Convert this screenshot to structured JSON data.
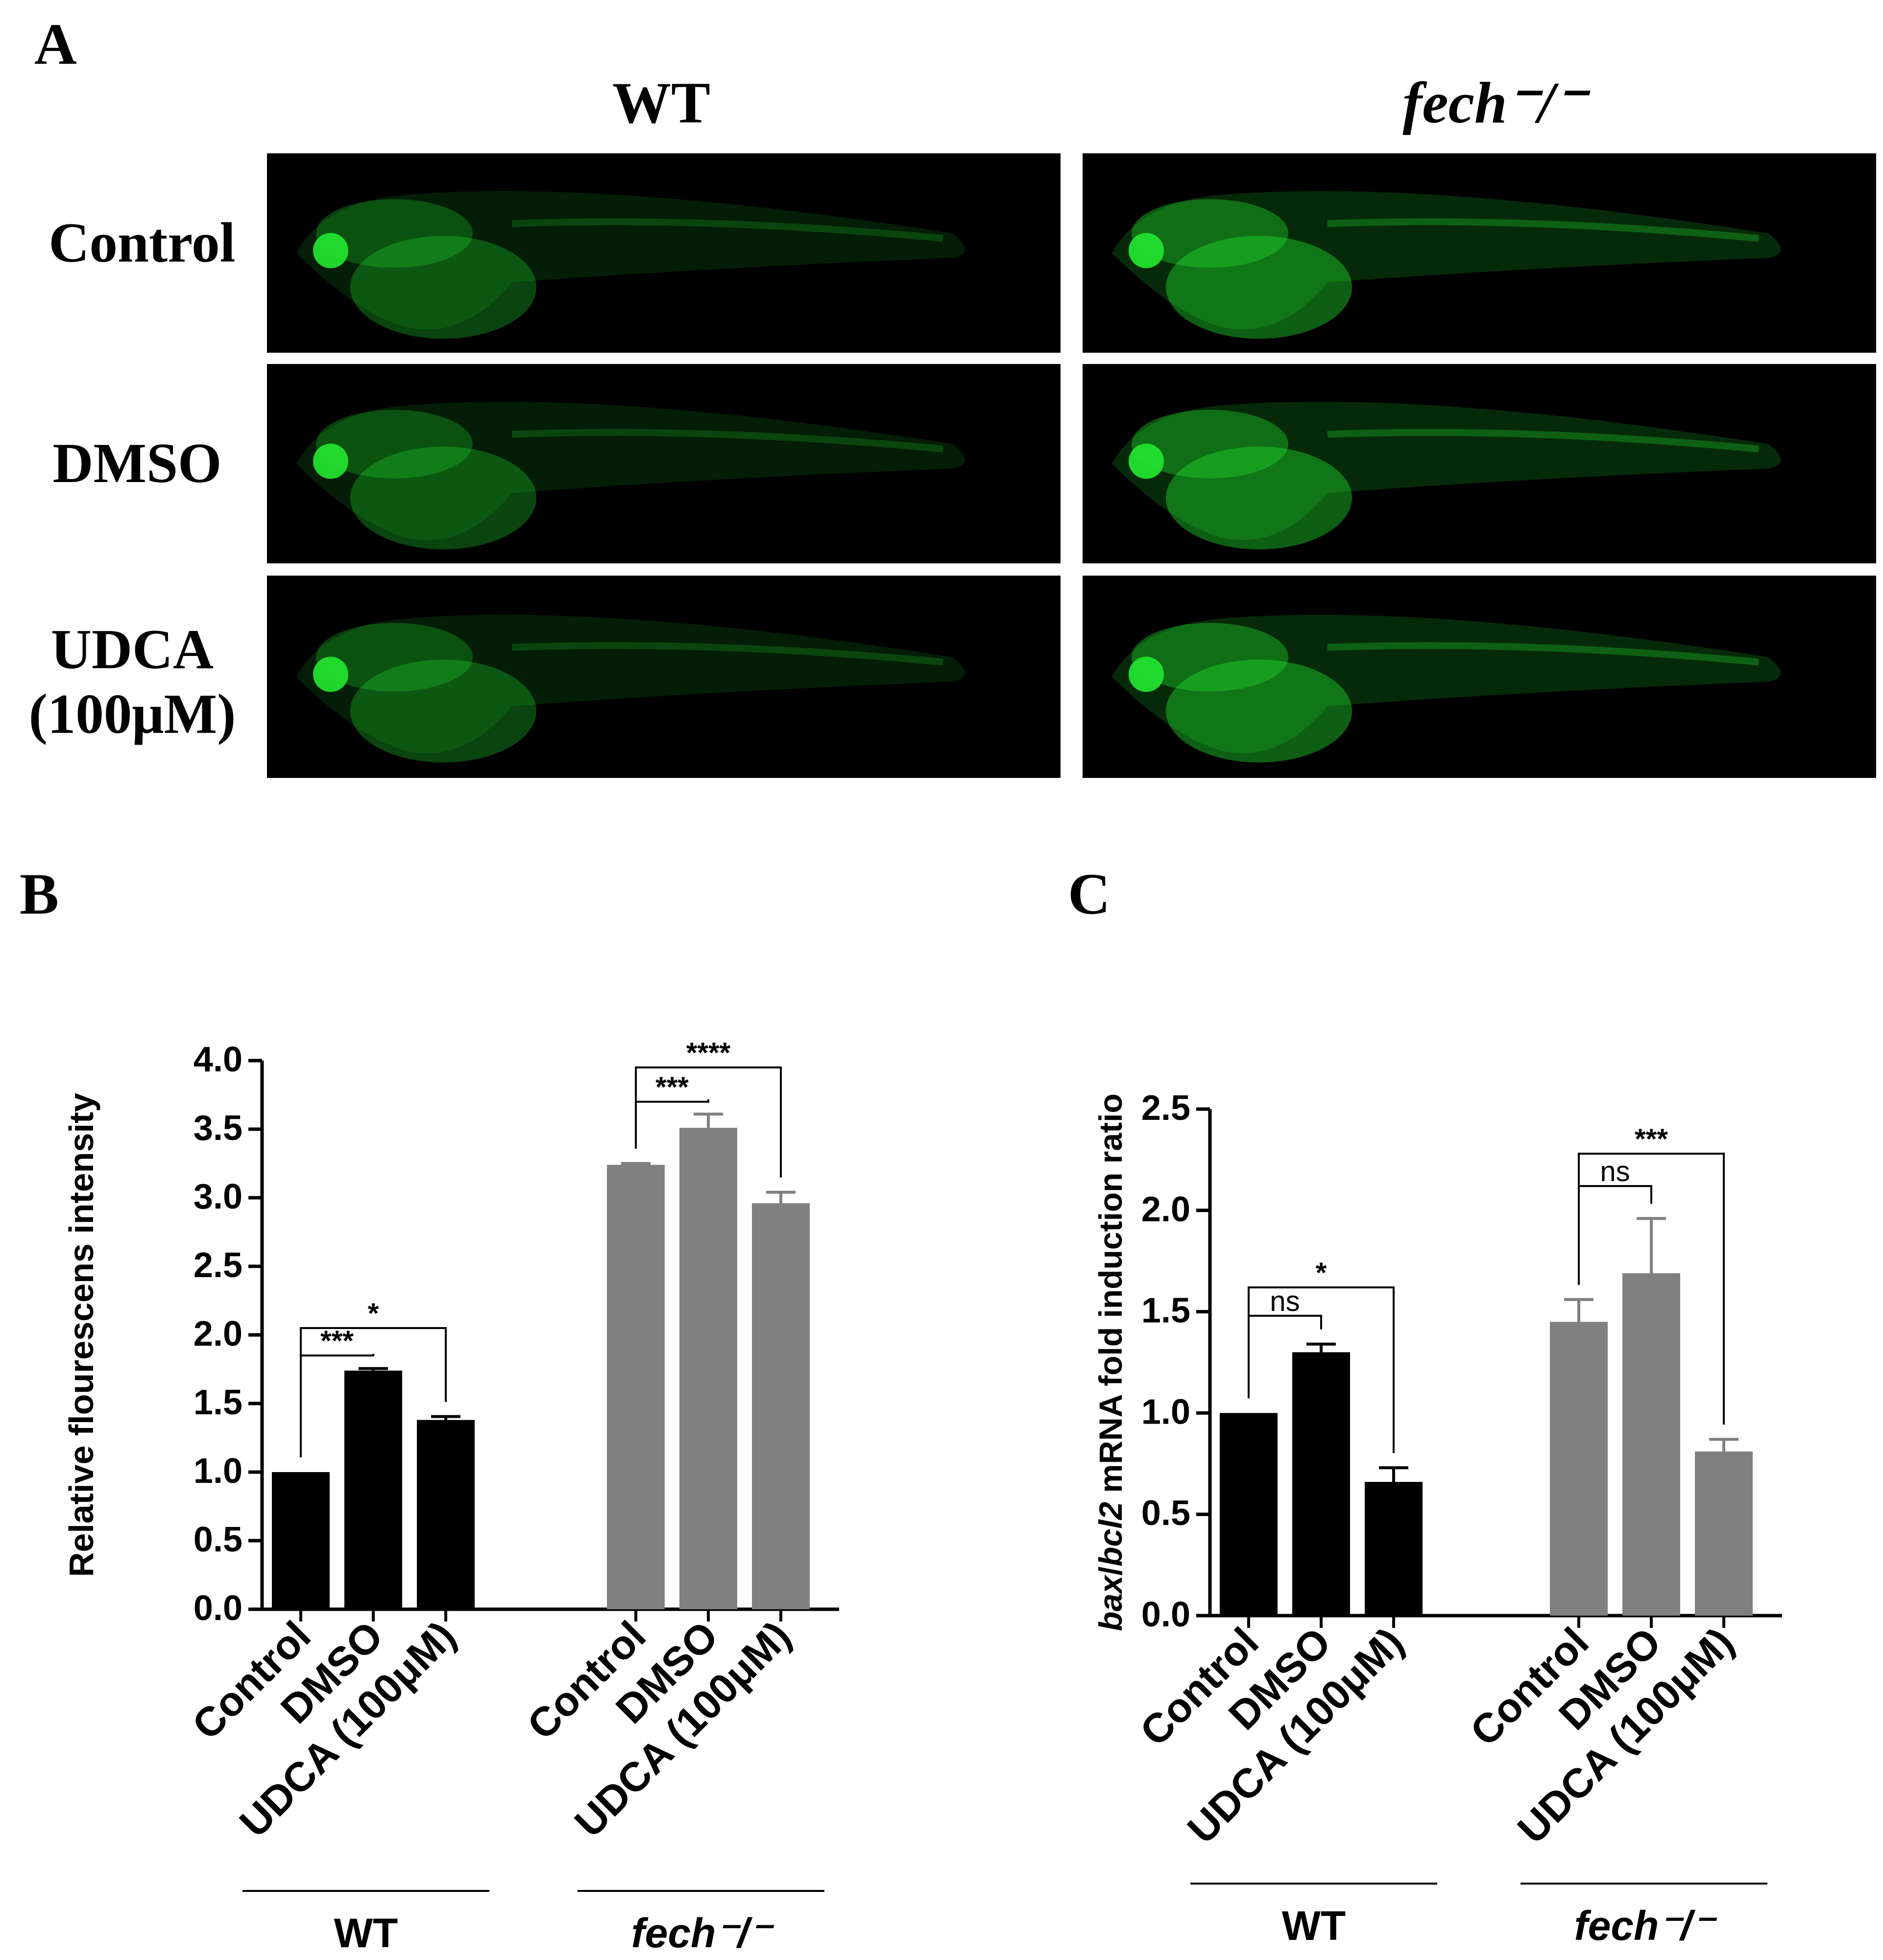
{
  "panelA": {
    "letter": "A",
    "columns": [
      "WT",
      "fech⁻/⁻"
    ],
    "rows": [
      "Control",
      "DMSO",
      "UDCA (100μM)"
    ],
    "row_label_lines": [
      [
        "Control"
      ],
      [
        "DMSO"
      ],
      [
        "UDCA",
        "(100μM)"
      ]
    ],
    "fluorescence_color": "#22e02e"
  },
  "panelB": {
    "letter": "B"
  },
  "panelC": {
    "letter": "C"
  },
  "chart_data": [
    {
      "type": "bar",
      "panel": "B",
      "ylabel": "Relative flourescens intensity",
      "ylim": [
        0,
        4.0
      ],
      "yticks": [
        "0.0",
        "0.5",
        "1.0",
        "1.5",
        "2.0",
        "2.5",
        "3.0",
        "3.5",
        "4.0"
      ],
      "categories": [
        "Control",
        "DMSO",
        "UDCA (100μM)"
      ],
      "groups": [
        {
          "label": "WT",
          "color": "#000000",
          "values": [
            1.0,
            1.74,
            1.38
          ],
          "errors": [
            0,
            0.015,
            0.025
          ]
        },
        {
          "label": "fech⁻/⁻",
          "color": "#808080",
          "values": [
            3.24,
            3.51,
            2.96
          ],
          "errors": [
            0.01,
            0.1,
            0.08
          ]
        }
      ],
      "significance": [
        {
          "group": 0,
          "from": 0,
          "to": 1,
          "label": "***",
          "level": 1.85
        },
        {
          "group": 0,
          "from": 0,
          "to": 2,
          "label": "*",
          "level": 2.05
        },
        {
          "group": 1,
          "from": 0,
          "to": 1,
          "label": "***",
          "level": 3.7
        },
        {
          "group": 1,
          "from": 0,
          "to": 2,
          "label": "****",
          "level": 3.95
        }
      ]
    },
    {
      "type": "bar",
      "panel": "C",
      "ylabel_italic_1": "bax",
      "ylabel_sep": "/",
      "ylabel_italic_2": "bcl2",
      "ylabel_rest": " mRNA fold induction ratio",
      "ylim": [
        0,
        2.5
      ],
      "yticks": [
        "0.0",
        "0.5",
        "1.0",
        "1.5",
        "2.0",
        "2.5"
      ],
      "categories": [
        "Control",
        "DMSO",
        "UDCA (100μM)"
      ],
      "groups": [
        {
          "label": "WT",
          "color": "#000000",
          "values": [
            1.0,
            1.3,
            0.66
          ],
          "errors": [
            0,
            0.04,
            0.07
          ]
        },
        {
          "label": "fech⁻/⁻",
          "color": "#808080",
          "values": [
            1.45,
            1.69,
            0.81
          ],
          "errors": [
            0.11,
            0.27,
            0.06
          ]
        }
      ],
      "significance": [
        {
          "group": 0,
          "from": 0,
          "to": 1,
          "label": "ns",
          "level": 1.48
        },
        {
          "group": 0,
          "from": 0,
          "to": 2,
          "label": "*",
          "level": 1.62
        },
        {
          "group": 1,
          "from": 0,
          "to": 1,
          "label": "ns",
          "level": 2.12
        },
        {
          "group": 1,
          "from": 0,
          "to": 2,
          "label": "***",
          "level": 2.28
        }
      ]
    }
  ]
}
